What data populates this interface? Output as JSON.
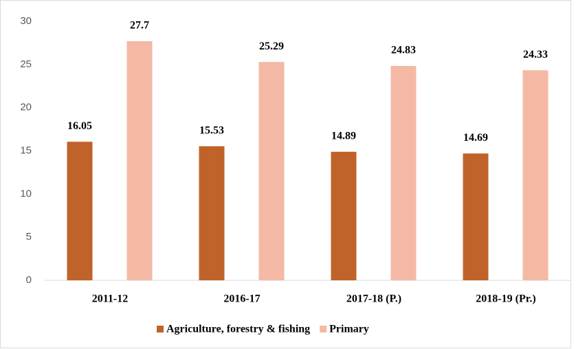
{
  "chart_data": {
    "type": "bar",
    "categories": [
      "2011-12",
      "2016-17",
      "2017-18 (P.)",
      "2018-19 (Pr.)"
    ],
    "series": [
      {
        "name": "Agriculture, forestry & fishing",
        "color": "#c0632a",
        "values": [
          16.05,
          15.53,
          14.89,
          14.69
        ]
      },
      {
        "name": "Primary",
        "color": "#f4b9a5",
        "values": [
          27.7,
          25.29,
          24.83,
          24.33
        ]
      }
    ],
    "ylim": [
      0,
      30
    ],
    "yticks": [
      0,
      5,
      10,
      15,
      20,
      25,
      30
    ],
    "grid": false,
    "legend": "bottom"
  }
}
